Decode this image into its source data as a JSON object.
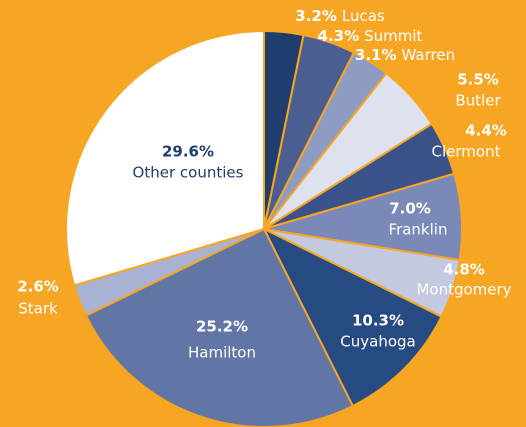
{
  "chart_data": {
    "type": "pie",
    "categories": [
      "Lucas",
      "Summit",
      "Warren",
      "Butler",
      "Clermont",
      "Franklin",
      "Montgomery",
      "Cuyahoga",
      "Hamilton",
      "Stark",
      "Other counties"
    ],
    "values": [
      3.2,
      4.3,
      3.1,
      5.5,
      4.4,
      7.0,
      4.8,
      10.3,
      25.2,
      2.6,
      29.6
    ],
    "value_labels": [
      "3.2%",
      "4.3%",
      "3.1%",
      "5.5%",
      "4.4%",
      "7.0%",
      "4.8%",
      "10.3%",
      "25.2%",
      "2.6%",
      "29.6%"
    ],
    "colors": [
      "#1f3d6e",
      "#4a5e92",
      "#8e9cc3",
      "#dde2ee",
      "#3a5289",
      "#7a89b8",
      "#c3c9df",
      "#264a82",
      "#6276a6",
      "#a8b2d2",
      "#ffffff"
    ]
  }
}
